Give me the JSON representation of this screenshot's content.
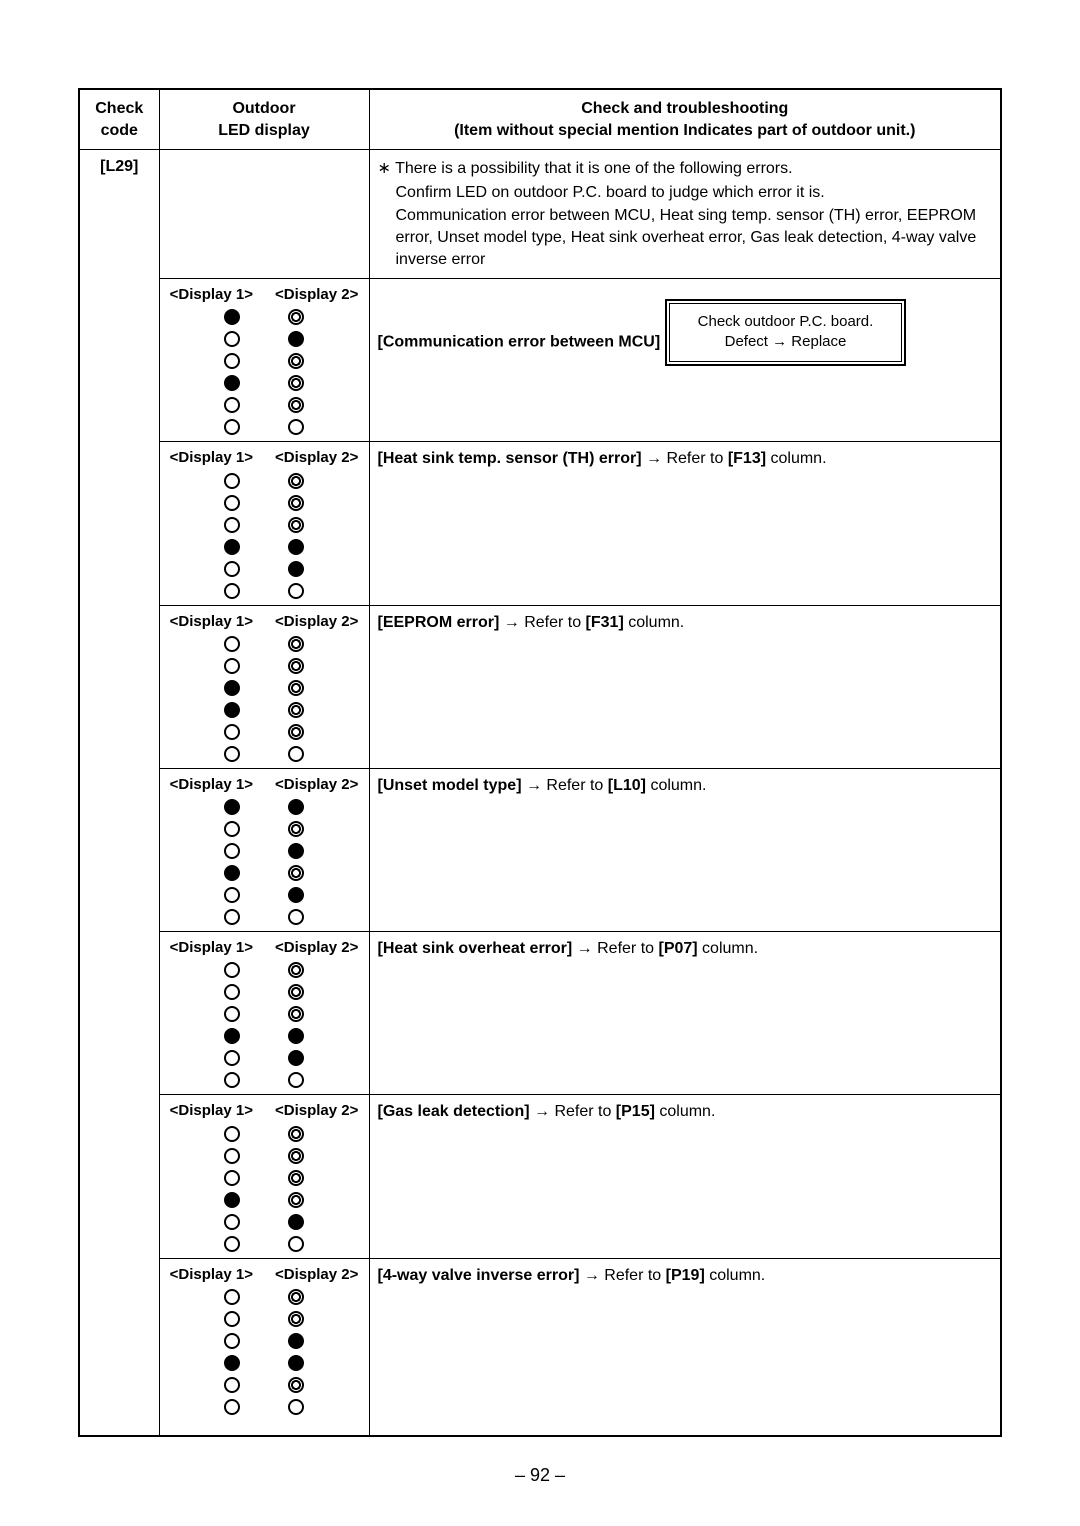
{
  "page_number": "– 92 –",
  "header": {
    "col_code_l1": "Check",
    "col_code_l2": "code",
    "col_led_l1": "Outdoor",
    "col_led_l2": "LED display",
    "col_trbl_l1": "Check and troubleshooting",
    "col_trbl_l2": "(Item without special mention Indicates part of outdoor unit.)"
  },
  "check_code": "[L29]",
  "display1_label": "<Display 1>",
  "display2_label": "<Display 2>",
  "intro": {
    "bullet": "∗",
    "line1": "There is a possibility that it is one of the following errors.",
    "line2": "Confirm LED on outdoor P.C. board to judge which error it is.",
    "line3": "Communication error between MCU, Heat sing temp. sensor (TH) error, EEPROM error, Unset model type, Heat sink overheat error, Gas leak detection, 4-way valve inverse error"
  },
  "rows": [
    {
      "id": "comm_mcu",
      "display1": [
        "on",
        "off",
        "off",
        "on",
        "off",
        "off"
      ],
      "display2": [
        "flash",
        "on",
        "flash",
        "flash",
        "flash",
        "off"
      ],
      "title": "[Communication error between MCU]",
      "box_l1": "Check outdoor P.C. board.",
      "box_l2": "Defect → Replace"
    },
    {
      "id": "heat_sink_sensor",
      "display1": [
        "off",
        "off",
        "off",
        "on",
        "off",
        "off"
      ],
      "display2": [
        "flash",
        "flash",
        "flash",
        "on",
        "on",
        "off"
      ],
      "title_bold": "[Heat sink temp. sensor (TH) error]",
      "arrow": " → ",
      "refer_pre": "Refer to ",
      "refer_code": "[F13]",
      "refer_post": " column."
    },
    {
      "id": "eeprom",
      "display1": [
        "off",
        "off",
        "on",
        "on",
        "off",
        "off"
      ],
      "display2": [
        "flash",
        "flash",
        "flash",
        "flash",
        "flash",
        "off"
      ],
      "title_bold": "[EEPROM error]",
      "arrow": " → ",
      "refer_pre": "Refer to ",
      "refer_code": "[F31]",
      "refer_post": " column."
    },
    {
      "id": "unset_model",
      "display1": [
        "on",
        "off",
        "off",
        "on",
        "off",
        "off"
      ],
      "display2": [
        "on",
        "flash",
        "on",
        "flash",
        "on",
        "off"
      ],
      "title_bold": "[Unset model type]",
      "arrow": " → ",
      "refer_pre": "Refer to ",
      "refer_code": "[L10]",
      "refer_post": " column."
    },
    {
      "id": "heat_sink_overheat",
      "display1": [
        "off",
        "off",
        "off",
        "on",
        "off",
        "off"
      ],
      "display2": [
        "flash",
        "flash",
        "flash",
        "on",
        "on",
        "off"
      ],
      "title_bold": "[Heat sink overheat error]",
      "arrow": " → ",
      "refer_pre": "Refer to ",
      "refer_code": "[P07]",
      "refer_post": " column."
    },
    {
      "id": "gas_leak",
      "display1": [
        "off",
        "off",
        "off",
        "on",
        "off",
        "off"
      ],
      "display2": [
        "flash",
        "flash",
        "flash",
        "flash",
        "on",
        "off"
      ],
      "title_bold": "[Gas leak detection]",
      "arrow": " → ",
      "refer_pre": "Refer to ",
      "refer_code": "[P15]",
      "refer_post": " column."
    },
    {
      "id": "4way_valve",
      "display1": [
        "off",
        "off",
        "off",
        "on",
        "off",
        "off"
      ],
      "display2": [
        "flash",
        "flash",
        "on",
        "on",
        "flash",
        "off"
      ],
      "title_bold": "[4-way valve inverse error]",
      "arrow": " → ",
      "refer_pre": "Refer to ",
      "refer_code": "[P19]",
      "refer_post": " column."
    }
  ]
}
